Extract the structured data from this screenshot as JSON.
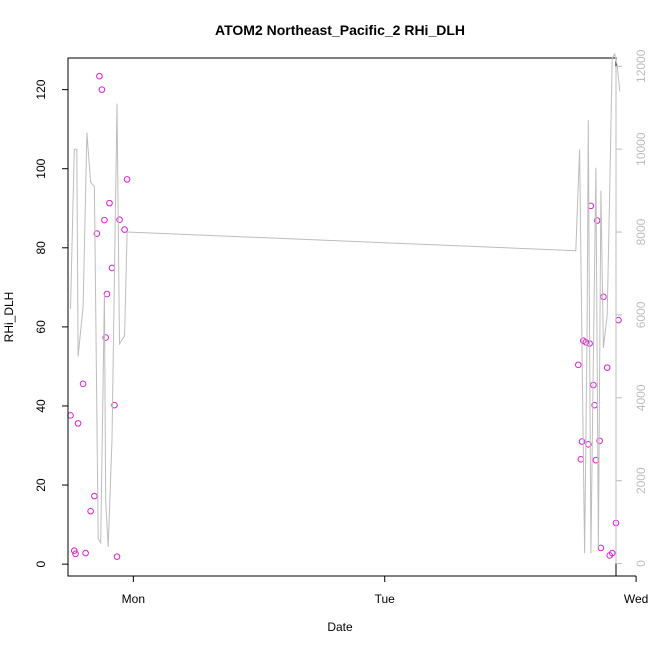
{
  "chart_data": {
    "type": "scatter",
    "title": "ATOM2 Northeast_Pacific_2 RHi_DLH",
    "xlabel": "Date",
    "ylabel": "RHi_DLH",
    "x_range_days": [
      -0.26,
      1.92
    ],
    "x_ticks": [
      {
        "value": 0,
        "label": "Mon"
      },
      {
        "value": 1,
        "label": "Tue"
      },
      {
        "value": 2,
        "label": "Wed"
      }
    ],
    "ylim": [
      -3,
      128
    ],
    "y_ticks": [
      0,
      20,
      40,
      60,
      80,
      100,
      120
    ],
    "y2lim": [
      -300,
      12200
    ],
    "y2_ticks": [
      0,
      2000,
      4000,
      6000,
      8000,
      10000,
      12000
    ],
    "grid": false,
    "series": [
      {
        "kind": "points",
        "axis": "left",
        "color": "#e11fd6",
        "points": [
          {
            "x": -0.25,
            "y": 37.6
          },
          {
            "x": -0.235,
            "y": 3.4
          },
          {
            "x": -0.23,
            "y": 2.6
          },
          {
            "x": -0.22,
            "y": 35.6
          },
          {
            "x": -0.2,
            "y": 45.6
          },
          {
            "x": -0.19,
            "y": 2.8
          },
          {
            "x": -0.17,
            "y": 13.4
          },
          {
            "x": -0.155,
            "y": 17.2
          },
          {
            "x": -0.145,
            "y": 83.6
          },
          {
            "x": -0.135,
            "y": 123.4
          },
          {
            "x": -0.125,
            "y": 120.0
          },
          {
            "x": -0.115,
            "y": 87.0
          },
          {
            "x": -0.11,
            "y": 57.3
          },
          {
            "x": -0.105,
            "y": 68.3
          },
          {
            "x": -0.095,
            "y": 91.3
          },
          {
            "x": -0.085,
            "y": 74.9
          },
          {
            "x": -0.075,
            "y": 40.2
          },
          {
            "x": -0.065,
            "y": 1.9
          },
          {
            "x": -0.055,
            "y": 87.1
          },
          {
            "x": -0.035,
            "y": 84.6
          },
          {
            "x": -0.025,
            "y": 97.3
          },
          {
            "x": 1.77,
            "y": 50.4
          },
          {
            "x": 1.78,
            "y": 26.5
          },
          {
            "x": 1.785,
            "y": 31.0
          },
          {
            "x": 1.79,
            "y": 56.5
          },
          {
            "x": 1.8,
            "y": 56.1
          },
          {
            "x": 1.81,
            "y": 30.3
          },
          {
            "x": 1.815,
            "y": 55.8
          },
          {
            "x": 1.82,
            "y": 90.6
          },
          {
            "x": 1.83,
            "y": 45.3
          },
          {
            "x": 1.835,
            "y": 40.2
          },
          {
            "x": 1.84,
            "y": 26.3
          },
          {
            "x": 1.845,
            "y": 86.9
          },
          {
            "x": 1.855,
            "y": 31.2
          },
          {
            "x": 1.86,
            "y": 4.1
          },
          {
            "x": 1.87,
            "y": 67.6
          },
          {
            "x": 1.885,
            "y": 49.7
          },
          {
            "x": 1.895,
            "y": 2.2
          },
          {
            "x": 1.905,
            "y": 2.8
          },
          {
            "x": 1.92,
            "y": 10.4
          },
          {
            "x": 1.93,
            "y": 61.7
          }
        ]
      },
      {
        "kind": "line",
        "axis": "right",
        "color": "#bdbdbd",
        "points": [
          {
            "x": -0.25,
            "y": 6150
          },
          {
            "x": -0.235,
            "y": 10000
          },
          {
            "x": -0.225,
            "y": 10000
          },
          {
            "x": -0.22,
            "y": 5000
          },
          {
            "x": -0.2,
            "y": 6200
          },
          {
            "x": -0.185,
            "y": 10400
          },
          {
            "x": -0.17,
            "y": 9200
          },
          {
            "x": -0.155,
            "y": 9100
          },
          {
            "x": -0.14,
            "y": 600
          },
          {
            "x": -0.13,
            "y": 500
          },
          {
            "x": -0.115,
            "y": 6500
          },
          {
            "x": -0.11,
            "y": 1500
          },
          {
            "x": -0.1,
            "y": 400
          },
          {
            "x": -0.085,
            "y": 3000
          },
          {
            "x": -0.065,
            "y": 11100
          },
          {
            "x": -0.055,
            "y": 5300
          },
          {
            "x": -0.035,
            "y": 5500
          },
          {
            "x": -0.025,
            "y": 8000
          },
          {
            "x": 1.76,
            "y": 7550
          },
          {
            "x": 1.775,
            "y": 10000
          },
          {
            "x": 1.785,
            "y": 5000
          },
          {
            "x": 1.795,
            "y": 250
          },
          {
            "x": 1.805,
            "y": 5600
          },
          {
            "x": 1.81,
            "y": 10700
          },
          {
            "x": 1.82,
            "y": 250
          },
          {
            "x": 1.83,
            "y": 5000
          },
          {
            "x": 1.84,
            "y": 9550
          },
          {
            "x": 1.85,
            "y": 400
          },
          {
            "x": 1.86,
            "y": 9000
          },
          {
            "x": 1.87,
            "y": 5200
          },
          {
            "x": 1.885,
            "y": 6000
          },
          {
            "x": 1.895,
            "y": 9000
          },
          {
            "x": 1.905,
            "y": 12200
          },
          {
            "x": 1.915,
            "y": 12300
          },
          {
            "x": 1.925,
            "y": 12000
          },
          {
            "x": 1.935,
            "y": 11400
          }
        ]
      }
    ]
  }
}
